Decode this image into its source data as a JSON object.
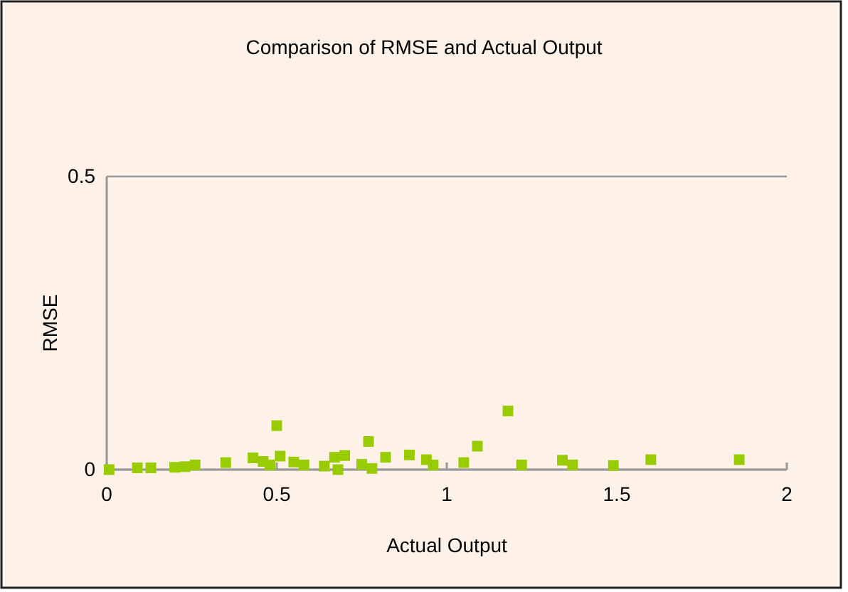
{
  "chart_data": {
    "type": "scatter",
    "title": "Comparison of RMSE and Actual Output",
    "xlabel": "Actual Output",
    "ylabel": "RMSE",
    "xlim": [
      0,
      2
    ],
    "xticks": [
      0,
      0.5,
      1,
      1.5,
      2
    ],
    "ylim": [
      0,
      0.5
    ],
    "yticks": [
      0,
      0.5
    ],
    "grid": "y",
    "marker": "square",
    "series": [
      {
        "color": "#99cc00",
        "x": [
          0.007,
          0.09,
          0.13,
          0.2,
          0.23,
          0.26,
          0.35,
          0.43,
          0.46,
          0.48,
          0.5,
          0.51,
          0.55,
          0.58,
          0.64,
          0.67,
          0.7,
          0.68,
          0.75,
          0.77,
          0.78,
          0.82,
          0.89,
          0.94,
          0.96,
          1.05,
          1.09,
          1.18,
          1.22,
          1.34,
          1.37,
          1.49,
          1.6,
          1.86
        ],
        "values": [
          0,
          0.003,
          0.003,
          0.004,
          0.005,
          0.008,
          0.012,
          0.02,
          0.014,
          0.008,
          0.075,
          0.023,
          0.013,
          0.008,
          0.006,
          0.021,
          0.024,
          0,
          0.009,
          0.048,
          0.002,
          0.021,
          0.025,
          0.017,
          0.008,
          0.012,
          0.04,
          0.1,
          0.008,
          0.016,
          0.008,
          0.007,
          0.017,
          0.017
        ]
      }
    ]
  }
}
